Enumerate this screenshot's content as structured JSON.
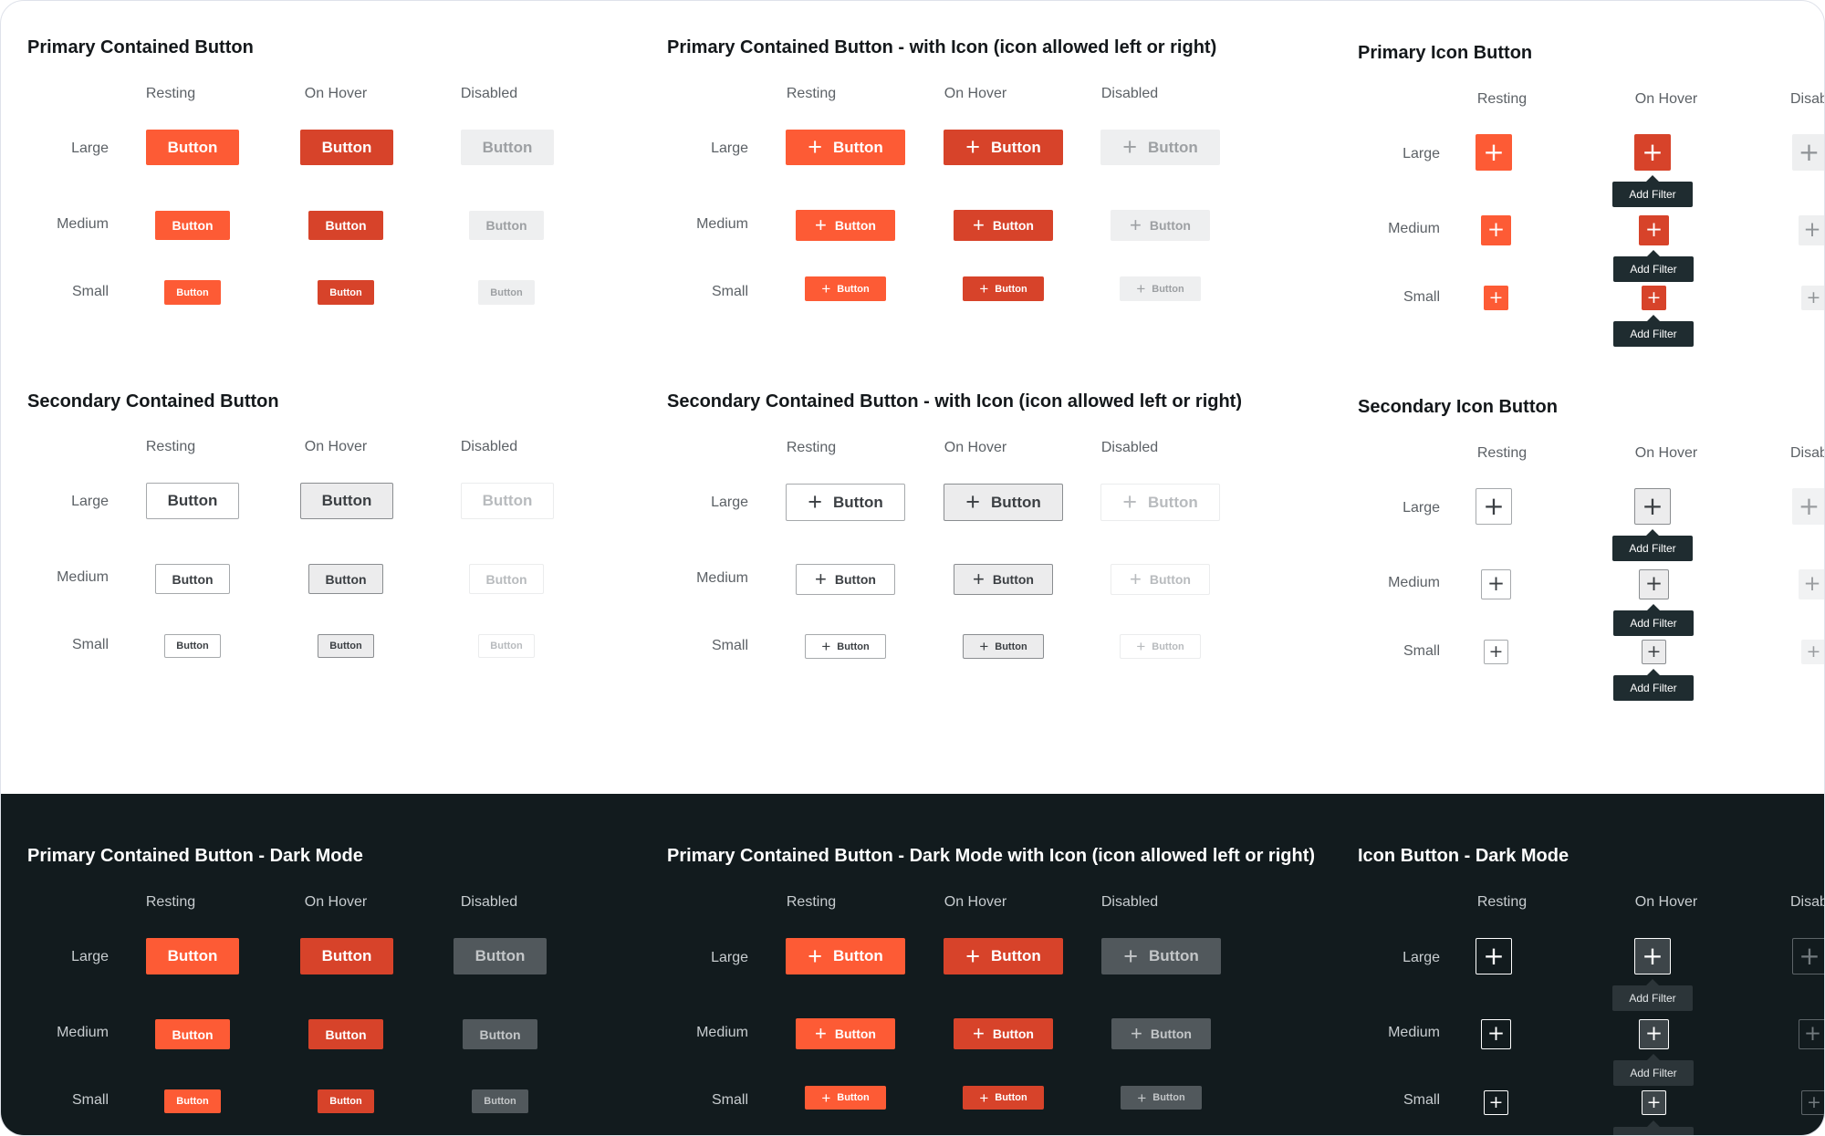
{
  "column_headers": {
    "resting": "Resting",
    "hover": "On Hover",
    "disabled": "Disabled",
    "disabled_clipped": "Disab"
  },
  "row_labels": {
    "large": "Large",
    "medium": "Medium",
    "small": "Small"
  },
  "button_label": "Button",
  "plus_glyph": "+",
  "tooltip_label": "Add Filter",
  "tooltip_label_clipped": "Add Filt",
  "sections": {
    "primary_contained": {
      "title": "Primary Contained Button"
    },
    "primary_contained_icon": {
      "title": "Primary Contained Button - with Icon (icon allowed left or right)"
    },
    "primary_icon": {
      "title": "Primary Icon Button"
    },
    "secondary_contained": {
      "title": "Secondary Contained Button"
    },
    "secondary_contained_icon": {
      "title": "Secondary Contained Button - with Icon (icon allowed left or right)"
    },
    "secondary_icon": {
      "title": "Secondary Icon Button"
    },
    "dark_contained": {
      "title": "Primary Contained Button - Dark Mode"
    },
    "dark_contained_icon": {
      "title": "Primary Contained Button - Dark Mode with Icon (icon allowed left or right)"
    },
    "dark_icon": {
      "title": "Icon Button - Dark Mode"
    }
  },
  "colors": {
    "primary": "#fd5b35",
    "primary_hover": "#d7432a",
    "disabled_bg": "#eeeff0",
    "dark_background": "#121b1e",
    "tooltip_bg": "#1f2c30",
    "secondary_border": "#a6a9ac"
  }
}
